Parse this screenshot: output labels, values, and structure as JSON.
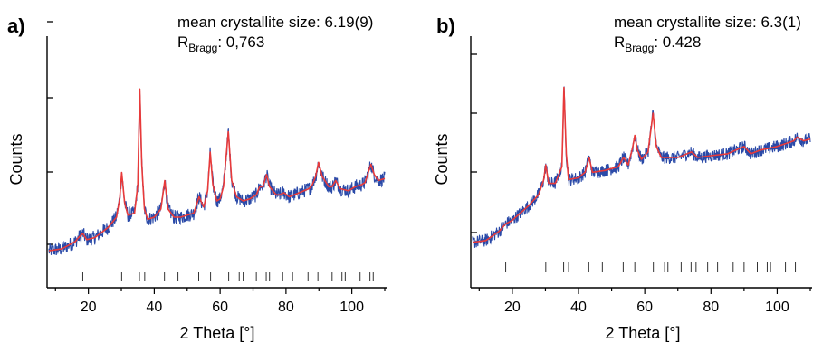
{
  "chart_data": [
    {
      "type": "line",
      "panel_label": "a)",
      "annotation_line1": "mean crystallite size: 6.19(9)",
      "rbragg_prefix": "R",
      "rbragg_sub": "Bragg",
      "rbragg_value": ": 0,763",
      "xlabel": "2 Theta [°]",
      "ylabel": "Counts",
      "xlim": [
        8,
        110
      ],
      "ylim": [
        0,
        1
      ],
      "xticks": [
        20,
        40,
        60,
        80,
        100
      ],
      "grid": false,
      "legend": "none",
      "series": [
        {
          "role": "observed",
          "color": "#2a4aa8",
          "x": [
            8,
            12,
            16,
            17,
            18.3,
            19.5,
            22,
            26,
            28.5,
            29.5,
            30.1,
            31,
            32,
            34,
            35,
            35.6,
            36.2,
            37,
            38,
            40,
            42,
            43.2,
            44.2,
            46,
            48,
            52,
            53.6,
            55,
            56.2,
            57,
            57.8,
            59,
            60,
            61,
            62.5,
            63.5,
            65,
            67,
            69,
            71,
            72,
            73,
            74.1,
            75,
            77,
            78,
            79.4,
            81,
            84,
            87,
            88,
            89,
            89.9,
            91,
            93,
            94,
            95.1,
            96.5,
            99,
            101,
            103,
            104,
            105,
            105.8,
            106.8,
            108,
            110
          ],
          "y": [
            0.035,
            0.045,
            0.08,
            0.1,
            0.12,
            0.09,
            0.1,
            0.15,
            0.2,
            0.29,
            0.42,
            0.27,
            0.21,
            0.22,
            0.36,
            0.83,
            0.46,
            0.24,
            0.19,
            0.2,
            0.24,
            0.38,
            0.24,
            0.2,
            0.2,
            0.22,
            0.3,
            0.25,
            0.33,
            0.52,
            0.36,
            0.28,
            0.29,
            0.35,
            0.62,
            0.38,
            0.3,
            0.28,
            0.29,
            0.31,
            0.35,
            0.35,
            0.41,
            0.35,
            0.31,
            0.31,
            0.32,
            0.3,
            0.32,
            0.34,
            0.36,
            0.4,
            0.47,
            0.4,
            0.35,
            0.35,
            0.38,
            0.34,
            0.33,
            0.35,
            0.36,
            0.37,
            0.42,
            0.46,
            0.41,
            0.38,
            0.39
          ]
        },
        {
          "role": "calculated",
          "color": "#e83a3a",
          "x": [
            8,
            12,
            16,
            17,
            18.3,
            19.5,
            22,
            26,
            28.5,
            29.5,
            30.1,
            31,
            32,
            34,
            35,
            35.6,
            36.2,
            37,
            38,
            40,
            42,
            43.2,
            44.2,
            46,
            48,
            52,
            53.6,
            55,
            56.2,
            57,
            57.8,
            59,
            60,
            61,
            62.5,
            63.5,
            65,
            67,
            69,
            71,
            72,
            73,
            74.1,
            75,
            77,
            78,
            79.4,
            81,
            84,
            87,
            88,
            89,
            89.9,
            91,
            93,
            94,
            95.1,
            96.5,
            99,
            101,
            103,
            104,
            105,
            105.8,
            106.8,
            108,
            110
          ],
          "y": [
            0.035,
            0.045,
            0.08,
            0.1,
            0.12,
            0.09,
            0.1,
            0.15,
            0.2,
            0.29,
            0.42,
            0.27,
            0.21,
            0.22,
            0.36,
            0.83,
            0.46,
            0.24,
            0.19,
            0.2,
            0.24,
            0.38,
            0.24,
            0.2,
            0.2,
            0.22,
            0.3,
            0.25,
            0.33,
            0.52,
            0.36,
            0.28,
            0.29,
            0.35,
            0.62,
            0.38,
            0.3,
            0.28,
            0.29,
            0.31,
            0.35,
            0.35,
            0.41,
            0.35,
            0.31,
            0.31,
            0.32,
            0.3,
            0.32,
            0.34,
            0.36,
            0.4,
            0.47,
            0.4,
            0.35,
            0.35,
            0.38,
            0.34,
            0.33,
            0.35,
            0.36,
            0.37,
            0.42,
            0.46,
            0.41,
            0.38,
            0.39
          ]
        }
      ],
      "reflection_positions": [
        18.3,
        30.1,
        35.5,
        37.1,
        43.1,
        47.2,
        53.5,
        57.1,
        62.6,
        65.8,
        67,
        71,
        74,
        75,
        79,
        82,
        86.7,
        89.7,
        94,
        97,
        98,
        102.5,
        105.5,
        106.5
      ]
    },
    {
      "type": "line",
      "panel_label": "b)",
      "annotation_line1": "mean crystallite size: 6.3(1)",
      "rbragg_prefix": "R",
      "rbragg_sub": "Bragg",
      "rbragg_value": ": 0.428",
      "xlabel": "2 Theta [°]",
      "ylabel": "Counts",
      "xlim": [
        8,
        110
      ],
      "ylim": [
        0,
        1
      ],
      "xticks": [
        20,
        40,
        60,
        80,
        100
      ],
      "grid": false,
      "legend": "none",
      "series": [
        {
          "role": "observed",
          "color": "#2a4aa8",
          "x": [
            8,
            12,
            16,
            18,
            20,
            25,
            28,
            29.5,
            30.1,
            31,
            33,
            35,
            35.6,
            36.3,
            37,
            40,
            42,
            43.2,
            44.2,
            48,
            52,
            53.6,
            55,
            56.3,
            57,
            57.8,
            59,
            61,
            62.5,
            63.5,
            65,
            70,
            74.1,
            76,
            80,
            85,
            90,
            92,
            95,
            100,
            105,
            106,
            108,
            110
          ],
          "y": [
            0.04,
            0.05,
            0.1,
            0.14,
            0.16,
            0.24,
            0.3,
            0.38,
            0.46,
            0.36,
            0.36,
            0.45,
            0.88,
            0.52,
            0.38,
            0.39,
            0.42,
            0.5,
            0.42,
            0.43,
            0.45,
            0.5,
            0.46,
            0.55,
            0.62,
            0.54,
            0.49,
            0.53,
            0.74,
            0.56,
            0.5,
            0.5,
            0.53,
            0.5,
            0.51,
            0.52,
            0.56,
            0.52,
            0.54,
            0.56,
            0.59,
            0.61,
            0.59,
            0.6
          ]
        },
        {
          "role": "calculated",
          "color": "#e83a3a",
          "x": [
            8,
            12,
            16,
            18,
            20,
            25,
            28,
            29.5,
            30.1,
            31,
            33,
            35,
            35.6,
            36.3,
            37,
            40,
            42,
            43.2,
            44.2,
            48,
            52,
            53.6,
            55,
            56.3,
            57,
            57.8,
            59,
            61,
            62.5,
            63.5,
            65,
            70,
            74.1,
            76,
            80,
            85,
            90,
            92,
            95,
            100,
            105,
            106,
            108,
            110
          ],
          "y": [
            0.04,
            0.05,
            0.1,
            0.14,
            0.16,
            0.24,
            0.3,
            0.38,
            0.46,
            0.36,
            0.36,
            0.45,
            0.88,
            0.52,
            0.38,
            0.39,
            0.42,
            0.5,
            0.42,
            0.43,
            0.45,
            0.5,
            0.46,
            0.55,
            0.62,
            0.54,
            0.49,
            0.53,
            0.74,
            0.56,
            0.5,
            0.5,
            0.53,
            0.5,
            0.51,
            0.52,
            0.56,
            0.52,
            0.54,
            0.56,
            0.59,
            0.61,
            0.59,
            0.6
          ]
        }
      ],
      "reflection_positions": [
        18,
        30.1,
        35.5,
        37,
        43.1,
        47.2,
        53.5,
        57,
        62.6,
        66,
        67,
        71,
        74,
        75.5,
        79,
        82,
        86.7,
        90,
        94,
        97,
        98,
        102.5,
        105.5
      ]
    }
  ]
}
